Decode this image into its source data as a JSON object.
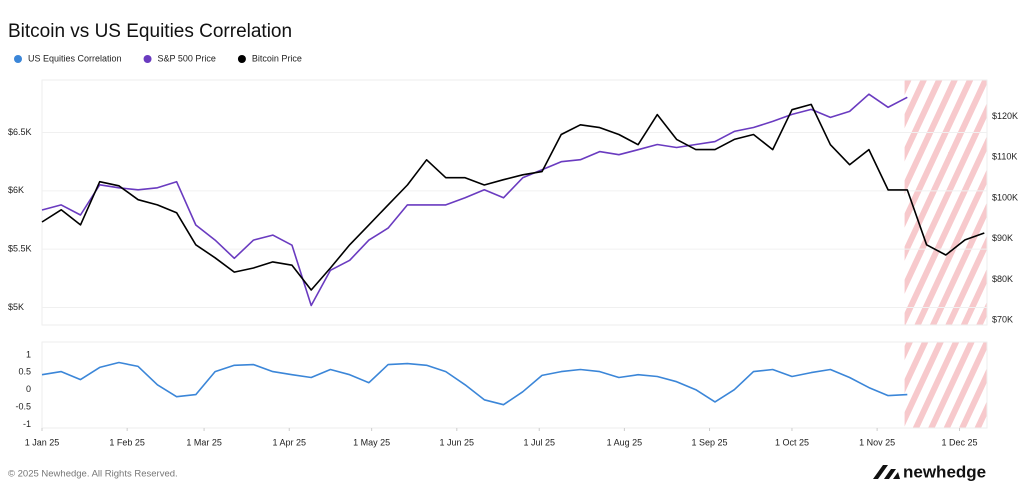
{
  "chart_data": [
    {
      "type": "line",
      "title": "Bitcoin vs US Equities Correlation",
      "x": [
        "2025-01-01",
        "2025-01-08",
        "2025-01-15",
        "2025-01-22",
        "2025-01-29",
        "2025-02-05",
        "2025-02-12",
        "2025-02-19",
        "2025-02-26",
        "2025-03-05",
        "2025-03-12",
        "2025-03-19",
        "2025-03-26",
        "2025-04-02",
        "2025-04-09",
        "2025-04-16",
        "2025-04-23",
        "2025-04-30",
        "2025-05-07",
        "2025-05-14",
        "2025-05-21",
        "2025-05-28",
        "2025-06-04",
        "2025-06-11",
        "2025-06-18",
        "2025-06-25",
        "2025-07-02",
        "2025-07-09",
        "2025-07-16",
        "2025-07-23",
        "2025-07-30",
        "2025-08-06",
        "2025-08-13",
        "2025-08-20",
        "2025-08-27",
        "2025-09-03",
        "2025-09-10",
        "2025-09-17",
        "2025-09-24",
        "2025-10-01",
        "2025-10-08",
        "2025-10-15",
        "2025-10-22",
        "2025-10-29",
        "2025-11-05",
        "2025-11-12",
        "2025-11-19",
        "2025-11-26",
        "2025-12-03",
        "2025-12-10"
      ],
      "xlim": [
        "2025-01-01",
        "2025-12-11"
      ],
      "ylim": [
        4850,
        6950
      ],
      "yticks": [
        {
          "value": 5000,
          "label": "$5K"
        },
        {
          "value": 5500,
          "label": "$5.5K"
        },
        {
          "value": 6000,
          "label": "$6K"
        },
        {
          "value": 6500,
          "label": "$6.5K"
        }
      ],
      "y2lim": [
        68800,
        129000
      ],
      "y2ticks": [
        {
          "value": 70000,
          "label": "$70K"
        },
        {
          "value": 80000,
          "label": "$80K"
        },
        {
          "value": 90000,
          "label": "$90K"
        },
        {
          "value": 100000,
          "label": "$100K"
        },
        {
          "value": 110000,
          "label": "$110K"
        },
        {
          "value": 120000,
          "label": "$120K"
        }
      ],
      "grid": true,
      "series": [
        {
          "name": "S&P 500 Price",
          "color": "#6a3bc0",
          "axis": "y",
          "values": [
            5836,
            5879,
            5793,
            6052,
            6026,
            6009,
            6026,
            6078,
            5707,
            5578,
            5422,
            5578,
            5621,
            5534,
            5017,
            5319,
            5405,
            5578,
            5681,
            5879,
            5879,
            5879,
            5940,
            6009,
            5940,
            6112,
            6181,
            6250,
            6267,
            6336,
            6310,
            6353,
            6397,
            6371,
            6397,
            6422,
            6509,
            6543,
            6595,
            6655,
            6698,
            6629,
            6681,
            6828,
            6716,
            6802,
            null,
            null,
            null,
            null
          ]
        },
        {
          "name": "Bitcoin Price",
          "color": "#000000",
          "axis": "y2",
          "values": [
            94100,
            97100,
            93400,
            104000,
            103000,
            99600,
            98300,
            96400,
            88500,
            85300,
            81800,
            82800,
            84300,
            83500,
            77400,
            82800,
            88500,
            93400,
            98300,
            103200,
            109400,
            105000,
            105000,
            103200,
            104500,
            105700,
            106500,
            115600,
            118000,
            117300,
            115600,
            113100,
            120500,
            114400,
            111900,
            111900,
            114400,
            115600,
            111900,
            121700,
            123000,
            113100,
            108200,
            111900,
            102000,
            102000,
            88500,
            86000,
            89700,
            91400
          ]
        }
      ]
    },
    {
      "type": "line",
      "x": [
        "2025-01-01",
        "2025-01-08",
        "2025-01-15",
        "2025-01-22",
        "2025-01-29",
        "2025-02-05",
        "2025-02-12",
        "2025-02-19",
        "2025-02-26",
        "2025-03-05",
        "2025-03-12",
        "2025-03-19",
        "2025-03-26",
        "2025-04-02",
        "2025-04-09",
        "2025-04-16",
        "2025-04-23",
        "2025-04-30",
        "2025-05-07",
        "2025-05-14",
        "2025-05-21",
        "2025-05-28",
        "2025-06-04",
        "2025-06-11",
        "2025-06-18",
        "2025-06-25",
        "2025-07-02",
        "2025-07-09",
        "2025-07-16",
        "2025-07-23",
        "2025-07-30",
        "2025-08-06",
        "2025-08-13",
        "2025-08-20",
        "2025-08-27",
        "2025-09-03",
        "2025-09-10",
        "2025-09-17",
        "2025-09-24",
        "2025-10-01",
        "2025-10-08",
        "2025-10-15",
        "2025-10-22",
        "2025-10-29",
        "2025-11-05",
        "2025-11-12"
      ],
      "xlim": [
        "2025-01-01",
        "2025-12-11"
      ],
      "xticks": [
        {
          "value": "2025-01-01",
          "label": "1 Jan 25"
        },
        {
          "value": "2025-02-01",
          "label": "1 Feb 25"
        },
        {
          "value": "2025-03-01",
          "label": "1 Mar 25"
        },
        {
          "value": "2025-04-01",
          "label": "1 Apr 25"
        },
        {
          "value": "2025-05-01",
          "label": "1 May 25"
        },
        {
          "value": "2025-06-01",
          "label": "1 Jun 25"
        },
        {
          "value": "2025-07-01",
          "label": "1 Jul 25"
        },
        {
          "value": "2025-08-01",
          "label": "1 Aug 25"
        },
        {
          "value": "2025-09-01",
          "label": "1 Sep 25"
        },
        {
          "value": "2025-10-01",
          "label": "1 Oct 25"
        },
        {
          "value": "2025-11-01",
          "label": "1 Nov 25"
        },
        {
          "value": "2025-12-01",
          "label": "1 Dec 25"
        }
      ],
      "ylim": [
        -1.1,
        1.37
      ],
      "yticks": [
        -1,
        -0.5,
        0,
        0.5,
        1
      ],
      "series": [
        {
          "name": "US Equities Correlation",
          "color": "#3b86d8",
          "values": [
            0.43,
            0.52,
            0.29,
            0.64,
            0.78,
            0.67,
            0.14,
            -0.2,
            -0.14,
            0.52,
            0.7,
            0.72,
            0.52,
            0.43,
            0.35,
            0.58,
            0.43,
            0.2,
            0.72,
            0.75,
            0.7,
            0.52,
            0.14,
            -0.29,
            -0.43,
            -0.06,
            0.41,
            0.52,
            0.58,
            0.52,
            0.35,
            0.43,
            0.38,
            0.23,
            0,
            -0.35,
            0,
            0.52,
            0.58,
            0.38,
            0.49,
            0.58,
            0.35,
            0.06,
            -0.17,
            -0.14
          ]
        }
      ]
    }
  ],
  "shaded_range": [
    "2025-11-11",
    "2025-12-11"
  ],
  "footer": {
    "copyright": "© 2025 Newhedge. All Rights Reserved.",
    "brand": "newhedge"
  }
}
